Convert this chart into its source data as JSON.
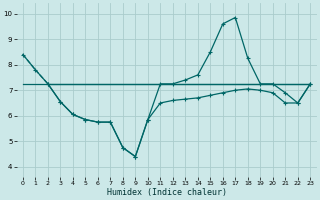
{
  "xlabel": "Humidex (Indice chaleur)",
  "bg_color": "#cce8e8",
  "grid_color": "#aacccc",
  "line_color": "#006666",
  "xlim": [
    -0.5,
    23.5
  ],
  "ylim": [
    3.6,
    10.4
  ],
  "yticks": [
    4,
    5,
    6,
    7,
    8,
    9,
    10
  ],
  "xticks": [
    0,
    1,
    2,
    3,
    4,
    5,
    6,
    7,
    8,
    9,
    10,
    11,
    12,
    13,
    14,
    15,
    16,
    17,
    18,
    19,
    20,
    21,
    22,
    23
  ],
  "flat_line_y": 7.25,
  "lineA_x": [
    0,
    1,
    2,
    3,
    4,
    5,
    6,
    7,
    8,
    9,
    10,
    11,
    12,
    13,
    14,
    15,
    16,
    17,
    18,
    19,
    20,
    21,
    22,
    23
  ],
  "lineA_y": [
    8.4,
    7.8,
    7.25,
    7.25,
    7.25,
    7.25,
    7.25,
    7.25,
    7.25,
    7.25,
    7.25,
    7.25,
    7.25,
    7.25,
    7.25,
    7.25,
    7.25,
    7.25,
    7.25,
    7.25,
    7.25,
    7.25,
    7.25,
    7.25
  ],
  "lineB_x": [
    0,
    1,
    2,
    3,
    4,
    5,
    6,
    7,
    8,
    9,
    10,
    11,
    12,
    13,
    14,
    15,
    16,
    17,
    18,
    19,
    20,
    21,
    22,
    23
  ],
  "lineB_y": [
    8.4,
    7.8,
    7.25,
    6.55,
    6.05,
    5.85,
    5.75,
    5.75,
    4.75,
    4.4,
    5.85,
    6.5,
    6.6,
    6.65,
    6.7,
    6.8,
    6.9,
    7.0,
    7.05,
    7.0,
    6.9,
    6.5,
    6.5,
    7.25
  ],
  "lineC_x": [
    2,
    3,
    4,
    5,
    6,
    7,
    8,
    9,
    10,
    11,
    12,
    13,
    14,
    15,
    16,
    17,
    18,
    19,
    20,
    21,
    22,
    23
  ],
  "lineC_y": [
    7.25,
    6.55,
    6.05,
    5.85,
    5.75,
    5.75,
    4.75,
    4.4,
    5.85,
    7.25,
    7.25,
    7.4,
    7.6,
    8.5,
    9.6,
    9.85,
    8.25,
    7.25,
    7.25,
    6.9,
    6.5,
    7.25
  ],
  "lineD_x": [
    0,
    1,
    2,
    3,
    4,
    5,
    6,
    7,
    8,
    9,
    10,
    11,
    12,
    13,
    14,
    15,
    16,
    17,
    18,
    19,
    20,
    21,
    22,
    23
  ],
  "lineD_y": [
    7.25,
    7.25,
    7.25,
    7.25,
    7.25,
    7.25,
    7.25,
    7.25,
    7.25,
    7.25,
    7.25,
    7.25,
    7.25,
    7.25,
    7.25,
    7.25,
    7.25,
    7.25,
    7.25,
    7.25,
    7.25,
    7.25,
    7.25,
    7.25
  ]
}
